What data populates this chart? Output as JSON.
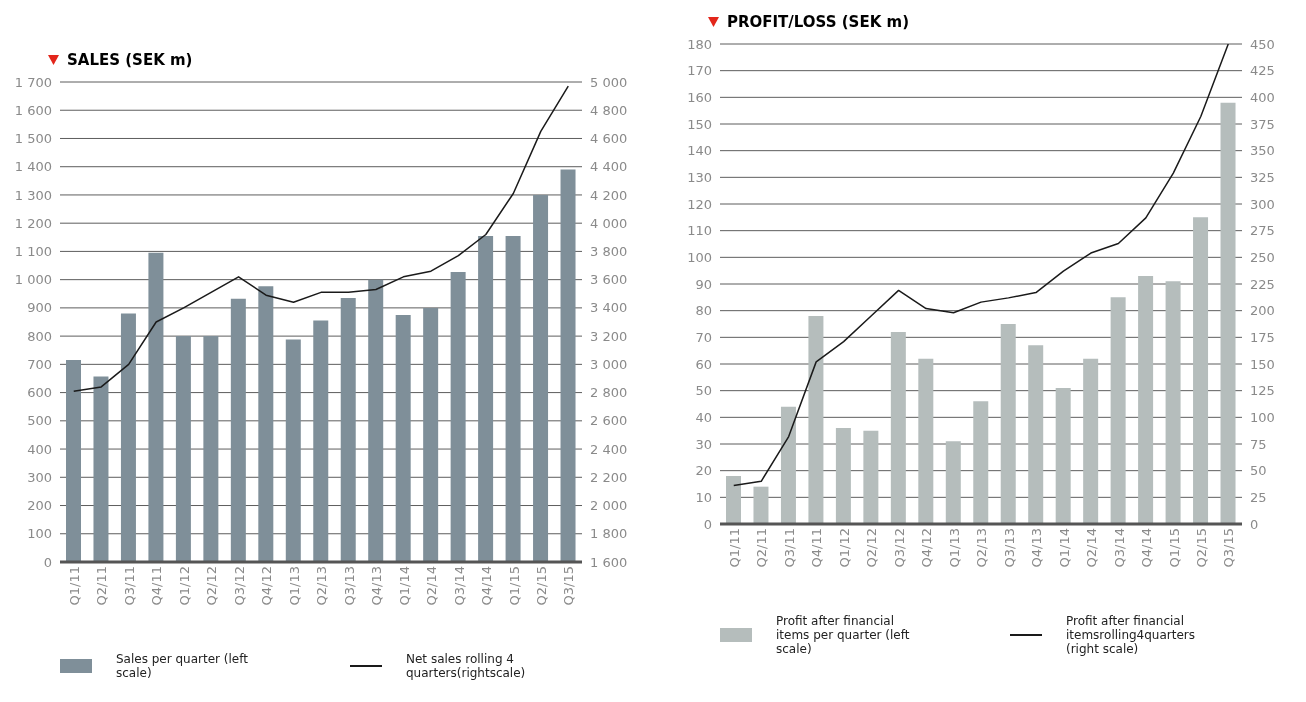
{
  "chart_data": [
    {
      "type": "bar",
      "title": "SALES (SEK m)",
      "categories": [
        "Q1/11",
        "Q2/11",
        "Q3/11",
        "Q4/11",
        "Q1/12",
        "Q2/12",
        "Q3/12",
        "Q4/12",
        "Q1/13",
        "Q2/13",
        "Q3/13",
        "Q4/13",
        "Q1/14",
        "Q2/14",
        "Q3/14",
        "Q4/14",
        "Q1/15",
        "Q2/15",
        "Q3/15"
      ],
      "series": [
        {
          "name": "Sales per quarter (left scale)",
          "color": "#7f8f99",
          "values": [
            715,
            657,
            880,
            1095,
            800,
            800,
            932,
            977,
            788,
            855,
            935,
            1000,
            875,
            900,
            1027,
            1155,
            1155,
            1300,
            1390
          ]
        },
        {
          "name": "Net sales rolling 4 quarters(rightscale)",
          "type": "line",
          "axis": "y2",
          "color": "#1a1a1a",
          "values": [
            2810,
            2840,
            3000,
            3300,
            3400,
            3510,
            3620,
            3490,
            3440,
            3510,
            3510,
            3530,
            3620,
            3660,
            3770,
            3920,
            4210,
            4650,
            4970
          ]
        }
      ],
      "ylim": [
        0,
        1700
      ],
      "yticks": [
        0,
        {
          "value": 100,
          "label": "100"
        },
        {
          "value": 200,
          "label": "200"
        },
        {
          "value": 300,
          "label": "300"
        },
        {
          "value": 400,
          "label": "400"
        },
        {
          "value": 500,
          "label": "500"
        },
        {
          "value": 600,
          "label": "600"
        },
        {
          "value": 700,
          "label": "700"
        },
        {
          "value": 800,
          "label": "800"
        },
        {
          "value": 900,
          "label": "900"
        },
        {
          "value": 1000,
          "label": "1 000"
        },
        {
          "value": 1100,
          "label": "1 100"
        },
        {
          "value": 1200,
          "label": "1 200"
        },
        {
          "value": 1300,
          "label": "1 300"
        },
        {
          "value": 1400,
          "label": "1 400"
        },
        {
          "value": 1500,
          "label": "1 500"
        },
        {
          "value": 1600,
          "label": "1 600"
        },
        {
          "value": 1700,
          "label": "1 700"
        }
      ],
      "y2lim": [
        1600,
        5000
      ],
      "y2ticks": [
        {
          "value": 1600,
          "label": "1 600"
        },
        {
          "value": 1800,
          "label": "1 800"
        },
        {
          "value": 2000,
          "label": "2 000"
        },
        {
          "value": 2200,
          "label": "2 200"
        },
        {
          "value": 2400,
          "label": "2 400"
        },
        {
          "value": 2600,
          "label": "2 600"
        },
        {
          "value": 2800,
          "label": "2 800"
        },
        {
          "value": 3000,
          "label": "3 000"
        },
        {
          "value": 3200,
          "label": "3 200"
        },
        {
          "value": 3400,
          "label": "3 400"
        },
        {
          "value": 3600,
          "label": "3 600"
        },
        {
          "value": 3800,
          "label": "3 800"
        },
        {
          "value": 4000,
          "label": "4 000"
        },
        {
          "value": 4200,
          "label": "4 200"
        },
        {
          "value": 4400,
          "label": "4 400"
        },
        {
          "value": 4600,
          "label": "4 600"
        },
        {
          "value": 4800,
          "label": "4 800"
        },
        {
          "value": 5000,
          "label": "5 000"
        }
      ],
      "grid": "y",
      "legend": "bottom",
      "marker": "none"
    },
    {
      "type": "bar",
      "title": "PROFIT/LOSS (SEK m)",
      "categories": [
        "Q1/11",
        "Q2/11",
        "Q3/11",
        "Q4/11",
        "Q1/12",
        "Q2/12",
        "Q3/12",
        "Q4/12",
        "Q1/13",
        "Q2/13",
        "Q3/13",
        "Q4/13",
        "Q1/14",
        "Q2/14",
        "Q3/14",
        "Q4/14",
        "Q1/15",
        "Q2/15",
        "Q3/15"
      ],
      "series": [
        {
          "name": "Profit after financial items per quarter (left scale)",
          "color": "#b5bdbc",
          "values": [
            18,
            14,
            44,
            78,
            36,
            35,
            72,
            62,
            31,
            46,
            75,
            67,
            51,
            62,
            85,
            93,
            91,
            115,
            158
          ]
        },
        {
          "name": "Profit after financial itemsrolling4quarters (right scale)",
          "type": "line",
          "axis": "y2",
          "color": "#1a1a1a",
          "values": [
            36,
            40,
            82,
            152,
            171,
            195,
            219,
            202,
            198,
            208,
            212,
            217,
            237,
            254,
            263,
            287,
            329,
            382,
            450
          ]
        }
      ],
      "ylim": [
        0,
        180
      ],
      "yticks": [
        0,
        10,
        20,
        30,
        40,
        50,
        60,
        70,
        80,
        90,
        100,
        110,
        120,
        130,
        140,
        150,
        160,
        170,
        180
      ],
      "y2lim": [
        0,
        450
      ],
      "y2ticks": [
        0,
        25,
        50,
        75,
        100,
        125,
        150,
        175,
        200,
        225,
        250,
        275,
        300,
        325,
        350,
        375,
        400,
        425,
        450
      ],
      "grid": "y",
      "legend": "bottom",
      "marker": "none"
    }
  ]
}
